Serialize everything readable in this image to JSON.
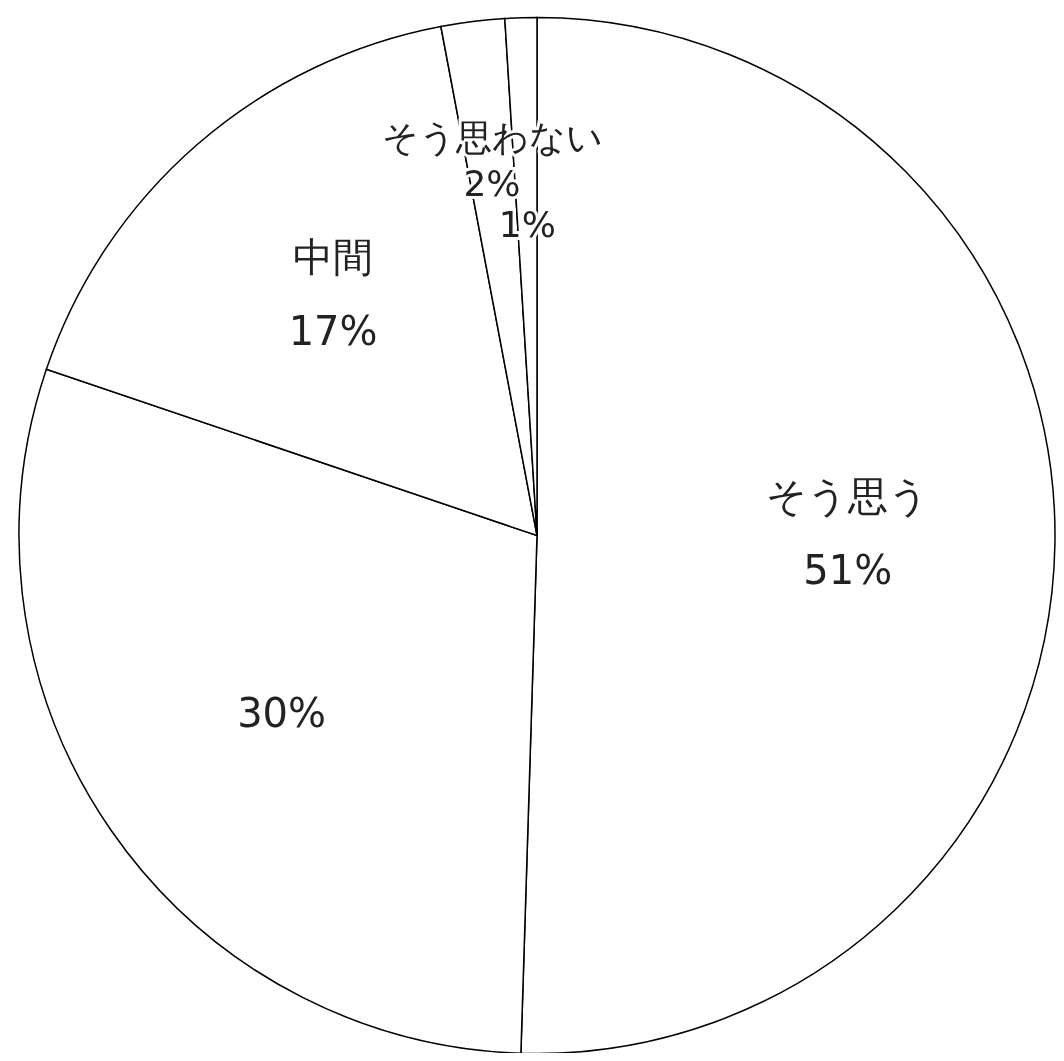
{
  "chart_data": {
    "type": "pie",
    "categories": [
      "そう思う",
      null,
      "中間",
      "そう思わない",
      null
    ],
    "values": [
      51,
      30,
      17,
      2,
      1
    ],
    "colors": [
      "#ffffff",
      "#ffffff",
      "#ffffff",
      "#ffffff",
      "#ffffff"
    ],
    "value_labels": [
      "51%",
      "30%",
      "17%",
      "2%",
      "1%"
    ]
  }
}
